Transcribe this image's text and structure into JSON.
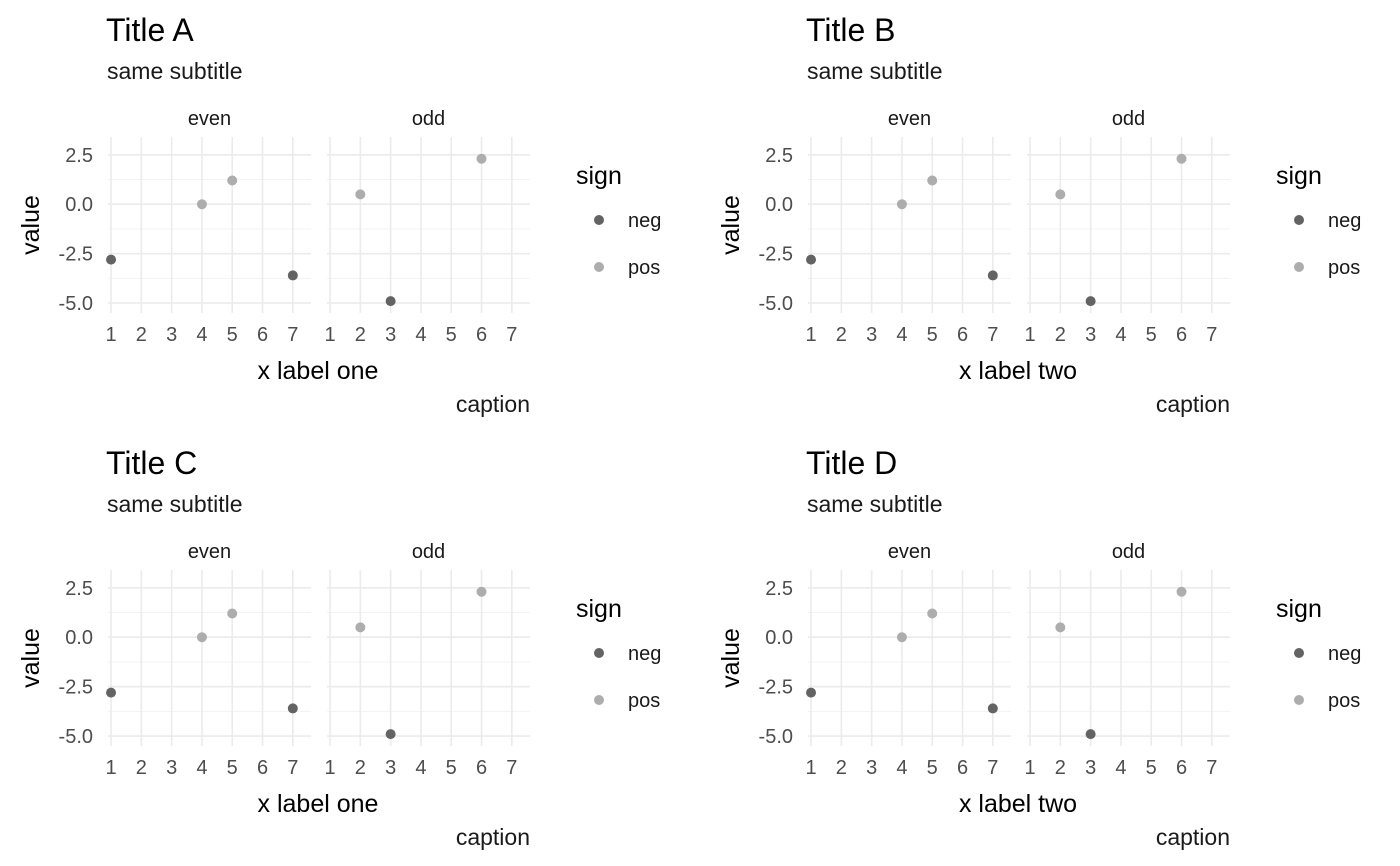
{
  "chart_data": [
    {
      "type": "scatter",
      "title": "Title A",
      "subtitle": "same subtitle",
      "xlabel": "x label one",
      "ylabel": "value",
      "caption": "caption",
      "facets": [
        "even",
        "odd"
      ],
      "x_ticks": [
        "1",
        "2",
        "3",
        "4",
        "5",
        "6",
        "7"
      ],
      "y_ticks": [
        "2.5",
        "0.0",
        "-2.5",
        "-5.0"
      ],
      "xlim": [
        0.9,
        7.6
      ],
      "ylim": [
        -5.5,
        3.4
      ],
      "grid": true,
      "legend": {
        "title": "sign",
        "position": "right",
        "entries": [
          "neg",
          "pos"
        ]
      },
      "series": [
        {
          "name": "neg",
          "color": "#636363",
          "points": [
            {
              "facet": "even",
              "x": 1,
              "y": -2.8
            },
            {
              "facet": "even",
              "x": 7,
              "y": -3.6
            },
            {
              "facet": "odd",
              "x": 3,
              "y": -4.9
            }
          ]
        },
        {
          "name": "pos",
          "color": "#adadad",
          "points": [
            {
              "facet": "even",
              "x": 4,
              "y": 0.0
            },
            {
              "facet": "even",
              "x": 5,
              "y": 1.2
            },
            {
              "facet": "odd",
              "x": 2,
              "y": 0.5
            },
            {
              "facet": "odd",
              "x": 6,
              "y": 2.3
            }
          ]
        }
      ]
    },
    {
      "type": "scatter",
      "title": "Title B",
      "subtitle": "same subtitle",
      "xlabel": "x label two",
      "ylabel": "value",
      "caption": "caption",
      "facets": [
        "even",
        "odd"
      ],
      "x_ticks": [
        "1",
        "2",
        "3",
        "4",
        "5",
        "6",
        "7"
      ],
      "y_ticks": [
        "2.5",
        "0.0",
        "-2.5",
        "-5.0"
      ],
      "xlim": [
        0.9,
        7.6
      ],
      "ylim": [
        -5.5,
        3.4
      ],
      "grid": true,
      "legend": {
        "title": "sign",
        "position": "right",
        "entries": [
          "neg",
          "pos"
        ]
      },
      "series": [
        {
          "name": "neg",
          "color": "#636363",
          "points": [
            {
              "facet": "even",
              "x": 1,
              "y": -2.8
            },
            {
              "facet": "even",
              "x": 7,
              "y": -3.6
            },
            {
              "facet": "odd",
              "x": 3,
              "y": -4.9
            }
          ]
        },
        {
          "name": "pos",
          "color": "#adadad",
          "points": [
            {
              "facet": "even",
              "x": 4,
              "y": 0.0
            },
            {
              "facet": "even",
              "x": 5,
              "y": 1.2
            },
            {
              "facet": "odd",
              "x": 2,
              "y": 0.5
            },
            {
              "facet": "odd",
              "x": 6,
              "y": 2.3
            }
          ]
        }
      ]
    },
    {
      "type": "scatter",
      "title": "Title C",
      "subtitle": "same subtitle",
      "xlabel": "x label one",
      "ylabel": "value",
      "caption": "caption",
      "facets": [
        "even",
        "odd"
      ],
      "x_ticks": [
        "1",
        "2",
        "3",
        "4",
        "5",
        "6",
        "7"
      ],
      "y_ticks": [
        "2.5",
        "0.0",
        "-2.5",
        "-5.0"
      ],
      "xlim": [
        0.9,
        7.6
      ],
      "ylim": [
        -5.5,
        3.4
      ],
      "grid": true,
      "legend": {
        "title": "sign",
        "position": "right",
        "entries": [
          "neg",
          "pos"
        ]
      },
      "series": [
        {
          "name": "neg",
          "color": "#636363",
          "points": [
            {
              "facet": "even",
              "x": 1,
              "y": -2.8
            },
            {
              "facet": "even",
              "x": 7,
              "y": -3.6
            },
            {
              "facet": "odd",
              "x": 3,
              "y": -4.9
            }
          ]
        },
        {
          "name": "pos",
          "color": "#adadad",
          "points": [
            {
              "facet": "even",
              "x": 4,
              "y": 0.0
            },
            {
              "facet": "even",
              "x": 5,
              "y": 1.2
            },
            {
              "facet": "odd",
              "x": 2,
              "y": 0.5
            },
            {
              "facet": "odd",
              "x": 6,
              "y": 2.3
            }
          ]
        }
      ]
    },
    {
      "type": "scatter",
      "title": "Title D",
      "subtitle": "same subtitle",
      "xlabel": "x label two",
      "ylabel": "value",
      "caption": "caption",
      "facets": [
        "even",
        "odd"
      ],
      "x_ticks": [
        "1",
        "2",
        "3",
        "4",
        "5",
        "6",
        "7"
      ],
      "y_ticks": [
        "2.5",
        "0.0",
        "-2.5",
        "-5.0"
      ],
      "xlim": [
        0.9,
        7.6
      ],
      "ylim": [
        -5.5,
        3.4
      ],
      "grid": true,
      "legend": {
        "title": "sign",
        "position": "right",
        "entries": [
          "neg",
          "pos"
        ]
      },
      "series": [
        {
          "name": "neg",
          "color": "#636363",
          "points": [
            {
              "facet": "even",
              "x": 1,
              "y": -2.8
            },
            {
              "facet": "even",
              "x": 7,
              "y": -3.6
            },
            {
              "facet": "odd",
              "x": 3,
              "y": -4.9
            }
          ]
        },
        {
          "name": "pos",
          "color": "#adadad",
          "points": [
            {
              "facet": "even",
              "x": 4,
              "y": 0.0
            },
            {
              "facet": "even",
              "x": 5,
              "y": 1.2
            },
            {
              "facet": "odd",
              "x": 2,
              "y": 0.5
            },
            {
              "facet": "odd",
              "x": 6,
              "y": 2.3
            }
          ]
        }
      ]
    }
  ]
}
